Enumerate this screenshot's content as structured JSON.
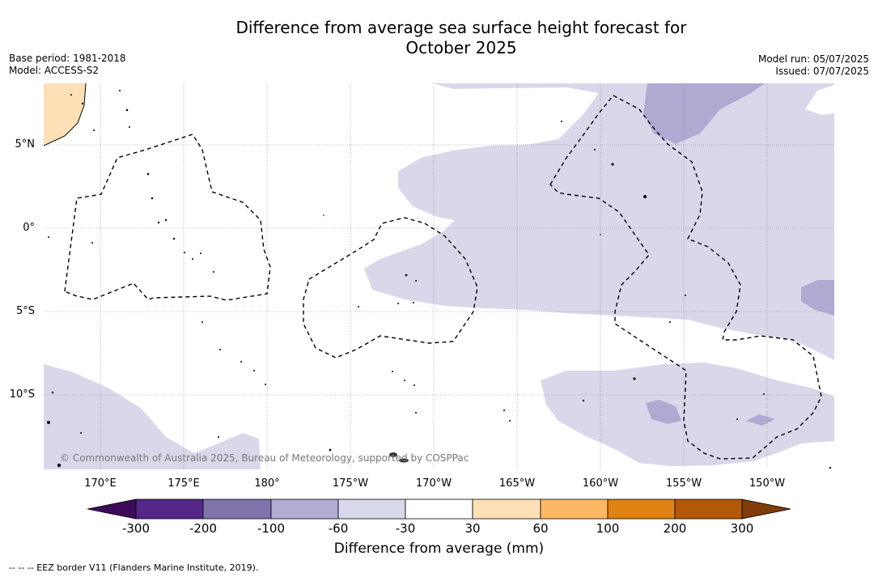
{
  "header": {
    "title_line1": "Difference from average sea surface height forecast for",
    "title_line2": "October 2025",
    "base_period": "Base period: 1981-2018",
    "model": "Model: ACCESS-S2",
    "model_run": "Model run: 05/07/2025",
    "issued": "Issued: 07/07/2025"
  },
  "map": {
    "latitude_labels": [
      "5°N",
      "0°",
      "5°S",
      "10°S"
    ],
    "longitude_labels": [
      "170°E",
      "175°E",
      "180°",
      "175°W",
      "170°W",
      "165°W",
      "160°W",
      "155°W",
      "150°W"
    ],
    "copyright": "© Commonwealth of Australia 2025, Bureau of Meteorology, supported by COSPPac",
    "colors": {
      "cat_neg60_neg30": "#d8d8ea",
      "cat_neg100_neg60": "#b0a9d1",
      "cat_30_60": "#fde0b6",
      "land": "#000000",
      "eez": "#000000",
      "grid": "#888888"
    }
  },
  "colorbar": {
    "tick_labels": [
      "-300",
      "-200",
      "-100",
      "-60",
      "-30",
      "30",
      "60",
      "100",
      "200",
      "300"
    ],
    "colors": [
      "#3d0a5a",
      "#542788",
      "#8073ac",
      "#b2abd2",
      "#d8daeb",
      "#ffffff",
      "#fee0b6",
      "#fdb863",
      "#e08214",
      "#b35806",
      "#7f3b08"
    ],
    "title": "Difference from average (mm)"
  },
  "footer": {
    "legend_text": "--  --  -- EEZ border V11 (Flanders Marine Institute, 2019)."
  }
}
